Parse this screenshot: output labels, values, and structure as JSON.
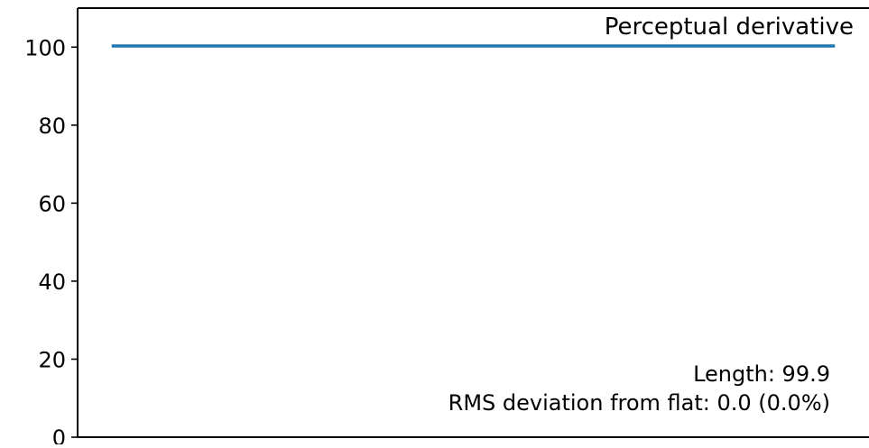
{
  "chart_data": {
    "type": "line",
    "title": "Perceptual derivative",
    "xlabel": "",
    "ylabel": "",
    "ylim": [
      0,
      110
    ],
    "xlim": [
      0,
      1
    ],
    "yticks": [
      0,
      20,
      40,
      60,
      80,
      100
    ],
    "ytick_labels": [
      "0",
      "20",
      "40",
      "60",
      "80",
      "100"
    ],
    "grid": false,
    "series": [
      {
        "color": "#1f77b4",
        "x": [
          0.045,
          0.955
        ],
        "values": [
          100.3,
          100.3
        ]
      }
    ],
    "annotations": [
      "Length: 99.9",
      "RMS deviation from flat: 0.0 (0.0%)"
    ]
  }
}
